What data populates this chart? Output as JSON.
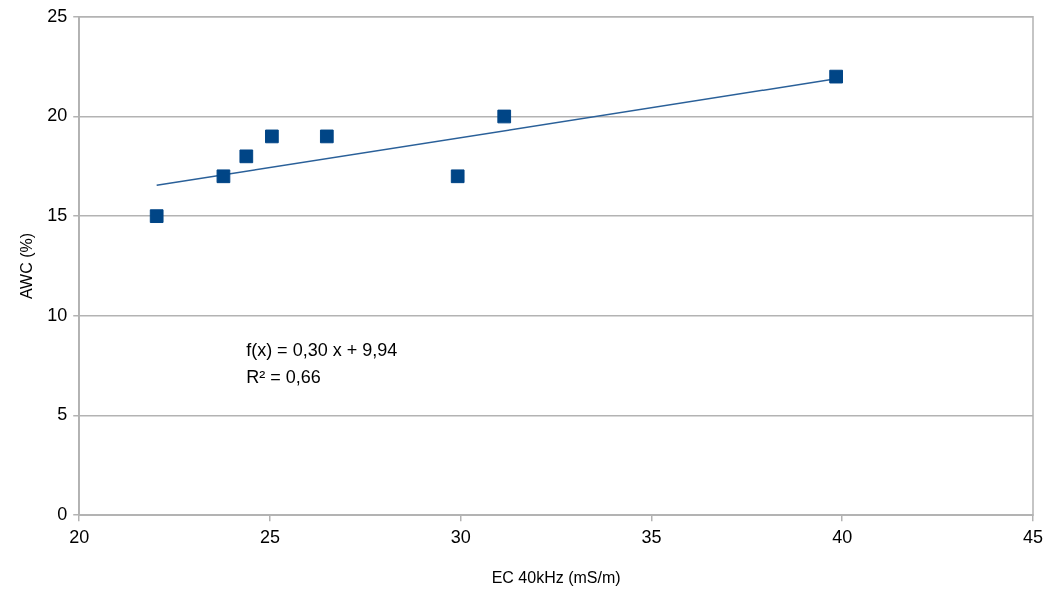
{
  "chart_data": {
    "type": "scatter",
    "xlabel": "EC 40kHz (mS/m)",
    "ylabel": "AWC (%)",
    "xlim": [
      20,
      45
    ],
    "xticks": [
      20,
      25,
      30,
      35,
      40,
      45
    ],
    "ylim": [
      0,
      25
    ],
    "yticks": [
      0,
      5,
      10,
      15,
      20,
      25
    ],
    "grid": "y",
    "legend": false,
    "marker": "square",
    "series": [
      {
        "type": "scatter",
        "color": "#004586",
        "x": [
          22.03,
          23.78,
          24.38,
          25.05,
          26.49,
          29.92,
          31.14,
          39.84
        ],
        "values": [
          15,
          17,
          18,
          19,
          19,
          17,
          20,
          22
        ]
      },
      {
        "type": "line",
        "color": "#2a6099",
        "marker": "none",
        "x": [
          22.03,
          39.84
        ],
        "values": [
          16.55,
          21.89
        ]
      }
    ],
    "annotations": [
      "f(x) = 0,30 x + 9,94",
      "R² = 0,66"
    ]
  }
}
